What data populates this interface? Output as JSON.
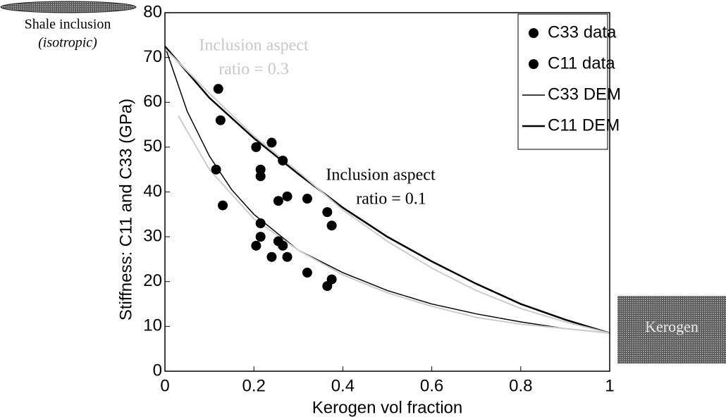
{
  "chart_data": {
    "type": "scatter",
    "xlabel": "Kerogen vol fraction",
    "ylabel": "Stiffness: C11 and C33 (GPa)",
    "xlim": [
      0,
      1
    ],
    "ylim": [
      0,
      80
    ],
    "xticks": [
      0,
      0.2,
      0.4,
      0.6,
      0.8,
      1
    ],
    "yticks": [
      0,
      10,
      20,
      30,
      40,
      50,
      60,
      70,
      80
    ],
    "legend": "upper right",
    "series": [
      {
        "name": "C33 data",
        "mode": "markers",
        "color": "#000000",
        "x": [
          0.115,
          0.13,
          0.215,
          0.215,
          0.205,
          0.24,
          0.255,
          0.265,
          0.275,
          0.32,
          0.365,
          0.375
        ],
        "values": [
          45,
          37,
          33,
          30,
          28,
          25.5,
          29,
          28,
          25.5,
          22,
          19,
          20.5
        ]
      },
      {
        "name": "C11 data",
        "mode": "markers",
        "color": "#000000",
        "x": [
          0.12,
          0.125,
          0.205,
          0.215,
          0.215,
          0.24,
          0.265,
          0.255,
          0.275,
          0.32,
          0.365,
          0.375
        ],
        "values": [
          63,
          56,
          50,
          45,
          43.5,
          51,
          47,
          38,
          39,
          38.5,
          35.5,
          32.5
        ]
      },
      {
        "name": "C33 DEM",
        "mode": "line",
        "width": 1.5,
        "color": "#000000",
        "x": [
          0,
          0.05,
          0.1,
          0.15,
          0.2,
          0.3,
          0.4,
          0.5,
          0.6,
          0.7,
          0.8,
          0.9,
          1
        ],
        "values": [
          72.5,
          58,
          48,
          40.5,
          35,
          27,
          22,
          18,
          15,
          12.8,
          11,
          9.5,
          8.5
        ]
      },
      {
        "name": "C11 DEM",
        "mode": "line",
        "width": 2.5,
        "color": "#000000",
        "x": [
          0,
          0.1,
          0.2,
          0.3,
          0.4,
          0.5,
          0.6,
          0.7,
          0.8,
          0.9,
          1
        ],
        "values": [
          72.5,
          61,
          52,
          44,
          36.5,
          30,
          24.5,
          19.5,
          15,
          11.5,
          8.5
        ]
      },
      {
        "mode": "line",
        "width": 2,
        "color": "#cccccc",
        "x": [
          0,
          0.1,
          0.2,
          0.3,
          0.4,
          0.5,
          0.6,
          0.7,
          0.8,
          0.9,
          1
        ],
        "values": [
          72,
          62,
          52.5,
          44.5,
          36,
          29,
          23,
          18,
          14,
          11,
          8.5
        ]
      },
      {
        "mode": "line",
        "width": 2,
        "color": "#cccccc",
        "x": [
          0.03,
          0.1,
          0.2,
          0.3,
          0.4,
          0.5,
          0.6,
          0.7,
          0.8,
          0.9,
          1
        ],
        "values": [
          57,
          45,
          34,
          27,
          21.5,
          17.5,
          14.5,
          12,
          10.5,
          9.5,
          8.5
        ]
      }
    ],
    "annotations": [
      {
        "lines": [
          "Inclusion aspect",
          "ratio = 0.1"
        ],
        "color": "#000000"
      },
      {
        "lines": [
          "Inclusion aspect",
          "ratio = 0.3"
        ],
        "color": "#c8c8c8"
      },
      {
        "lines": [
          "Shale inclusion",
          "(isotropic)"
        ],
        "color": "#000000"
      },
      {
        "lines": [
          "Kerogen"
        ],
        "color": "#e8e8e8"
      }
    ]
  }
}
